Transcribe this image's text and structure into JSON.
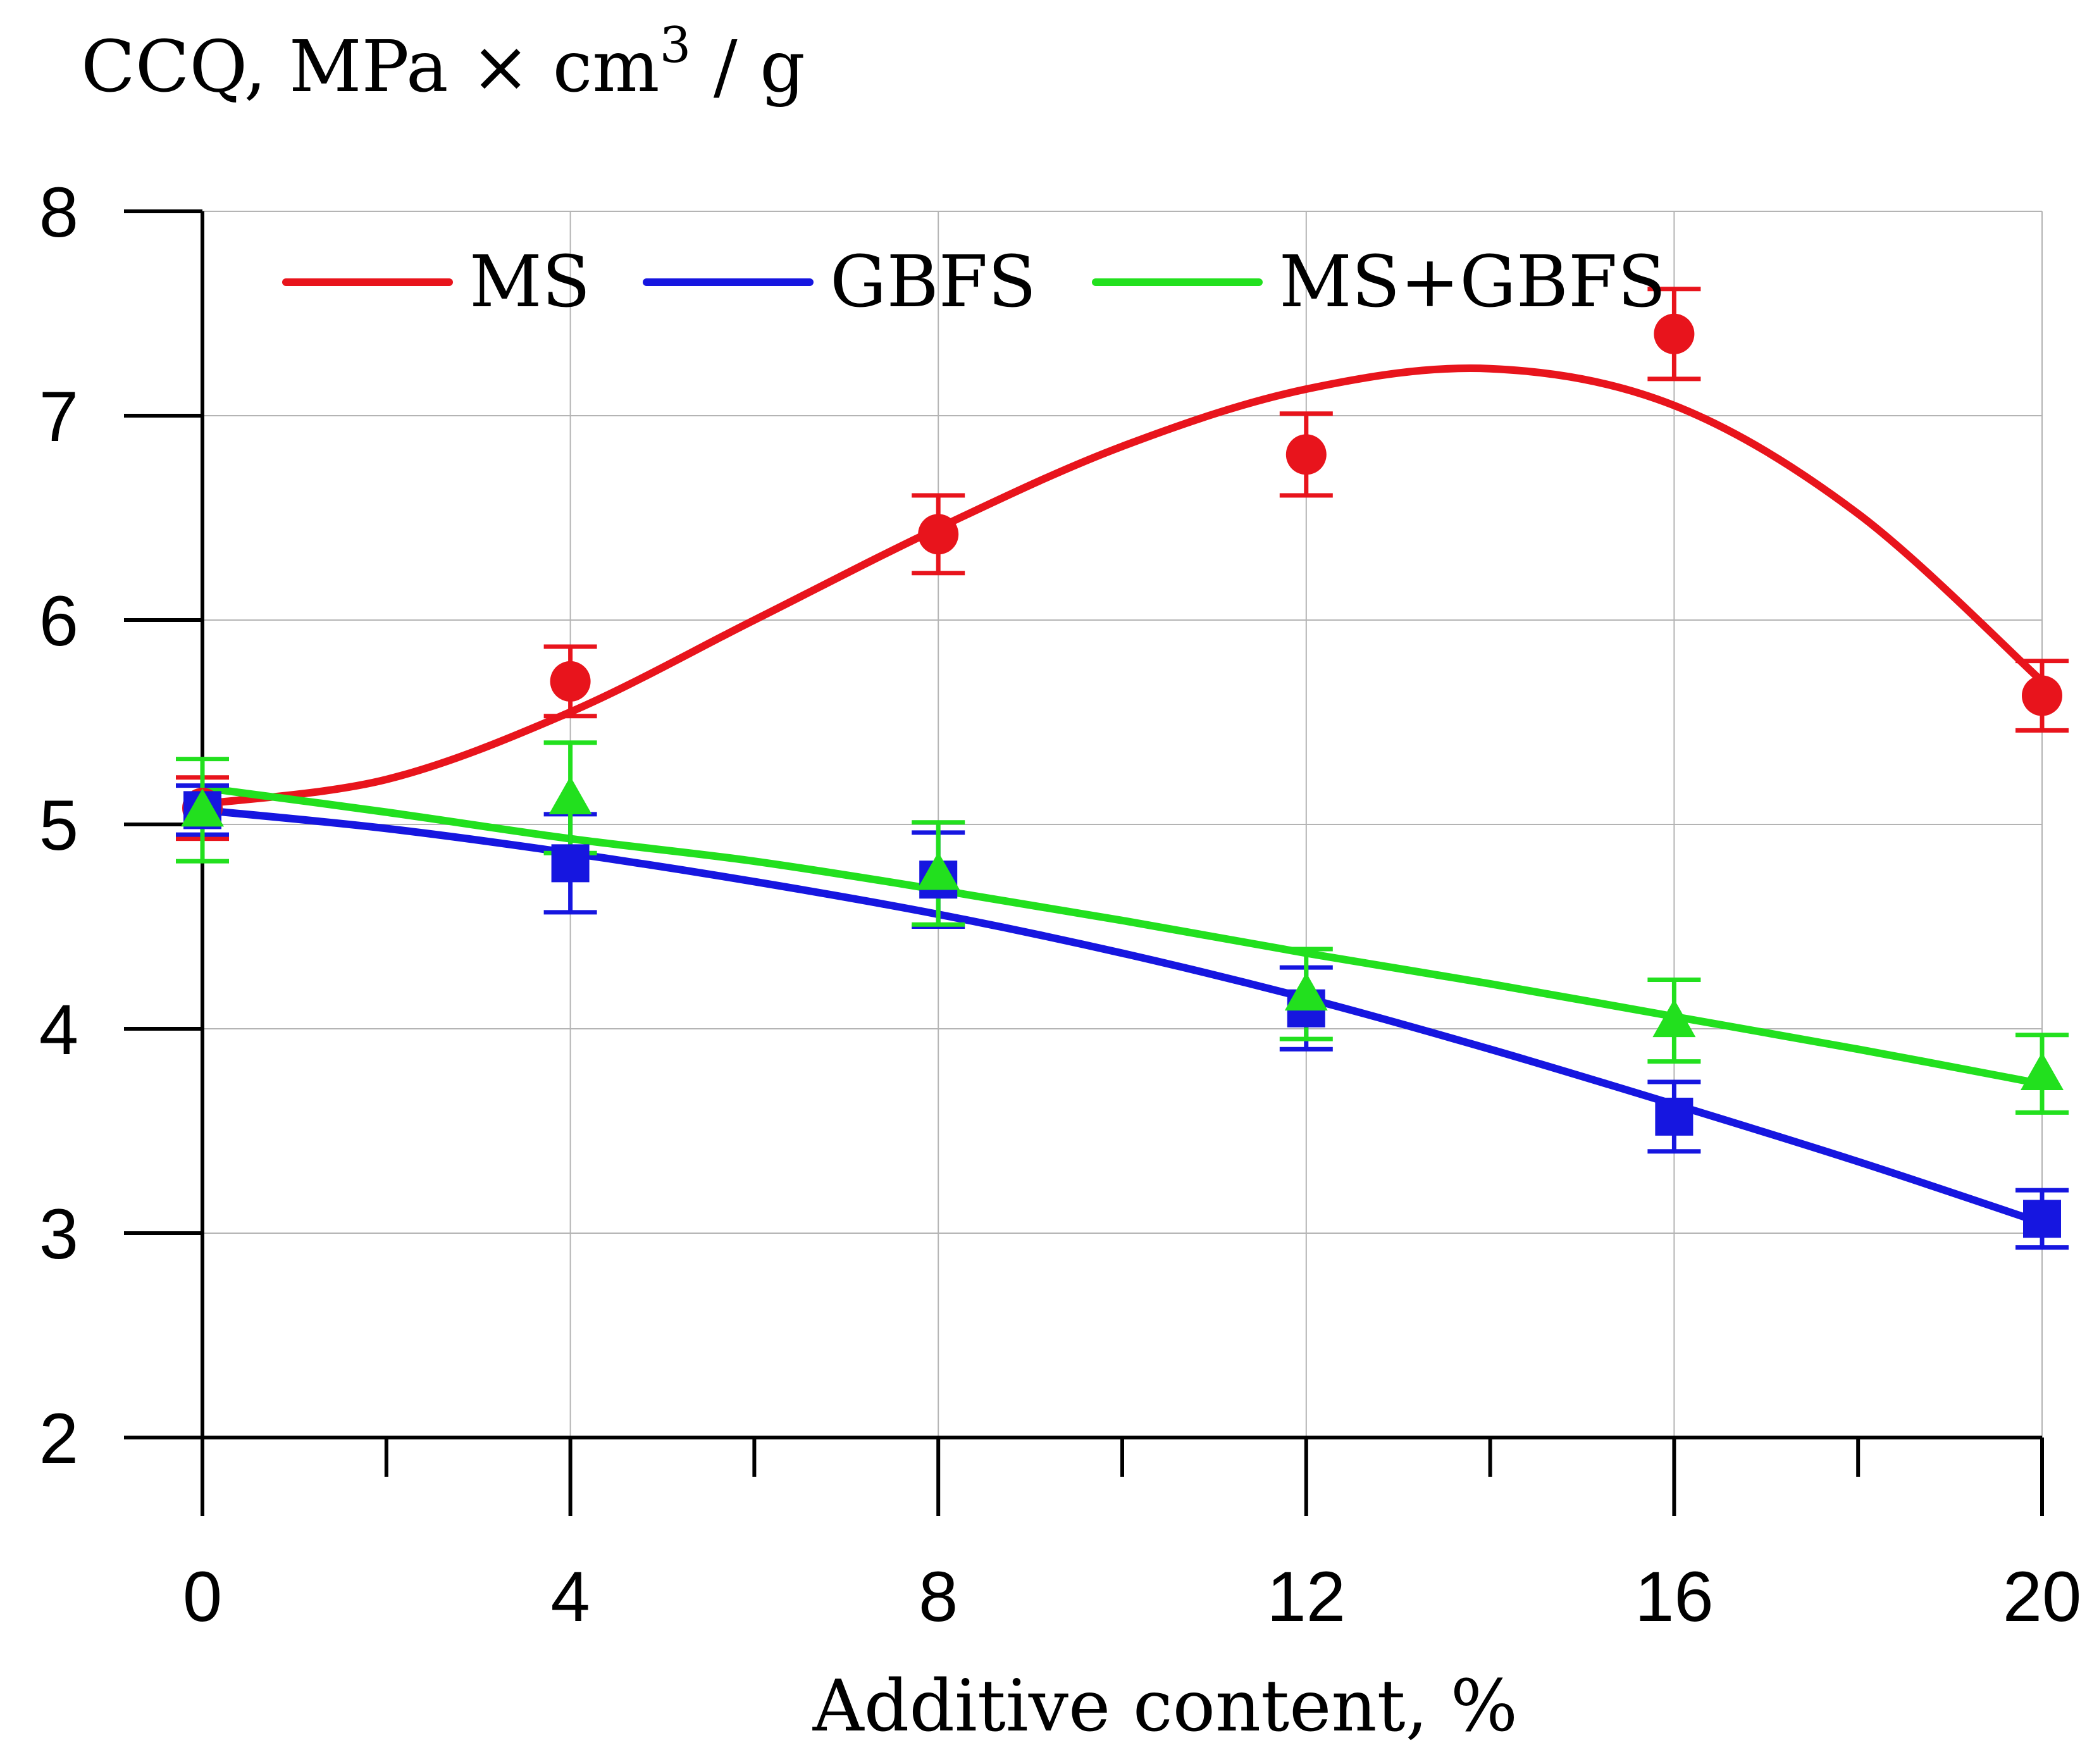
{
  "chart_data": {
    "type": "scatter",
    "title": "",
    "ylabel_prefix": "CCQ, MPa × cm",
    "ylabel_exp": "3",
    "ylabel_suffix": " / g",
    "xlabel": "Additive content, %",
    "xlim": [
      0,
      20
    ],
    "ylim": [
      2,
      8
    ],
    "xticks": [
      "0",
      "4",
      "8",
      "12",
      "16",
      "20"
    ],
    "yticks": [
      "2",
      "3",
      "4",
      "5",
      "6",
      "7",
      "8"
    ],
    "grid": true,
    "legend_position": "top",
    "series": [
      {
        "name": "MS",
        "color": "#e8141c",
        "marker": "circle",
        "x": [
          0,
          4,
          8,
          12,
          16,
          20
        ],
        "y": [
          5.08,
          5.7,
          6.42,
          6.81,
          7.4,
          5.63
        ],
        "err": [
          0.15,
          0.17,
          0.19,
          0.2,
          0.22,
          0.17
        ],
        "fit_x": [
          0,
          2,
          4,
          6,
          8,
          10,
          12,
          14,
          16,
          18,
          20
        ],
        "fit_y": [
          5.1,
          5.22,
          5.55,
          6.0,
          6.45,
          6.85,
          7.13,
          7.23,
          7.05,
          6.52,
          5.7
        ]
      },
      {
        "name": "GBFS",
        "color": "#1616e0",
        "marker": "square",
        "x": [
          0,
          4,
          8,
          12,
          16,
          20
        ],
        "y": [
          5.07,
          4.81,
          4.73,
          4.1,
          3.57,
          3.07
        ],
        "err": [
          0.12,
          0.24,
          0.23,
          0.2,
          0.17,
          0.14
        ],
        "fit_x": [
          0,
          2,
          4,
          6,
          8,
          10,
          12,
          14,
          16,
          18,
          20
        ],
        "fit_y": [
          5.07,
          4.98,
          4.86,
          4.72,
          4.56,
          4.37,
          4.15,
          3.9,
          3.63,
          3.35,
          3.05
        ]
      },
      {
        "name": "MS+GBFS",
        "color": "#22e01e",
        "marker": "triangle",
        "x": [
          0,
          4,
          8,
          12,
          16,
          20
        ],
        "y": [
          5.07,
          5.13,
          4.76,
          4.17,
          4.04,
          3.78
        ],
        "err": [
          0.25,
          0.27,
          0.25,
          0.22,
          0.2,
          0.19
        ],
        "fit_x": [
          0,
          2,
          4,
          6,
          8,
          10,
          12,
          14,
          16,
          18,
          20
        ],
        "fit_y": [
          5.18,
          5.06,
          4.93,
          4.82,
          4.68,
          4.53,
          4.37,
          4.22,
          4.06,
          3.9,
          3.73
        ]
      }
    ]
  }
}
